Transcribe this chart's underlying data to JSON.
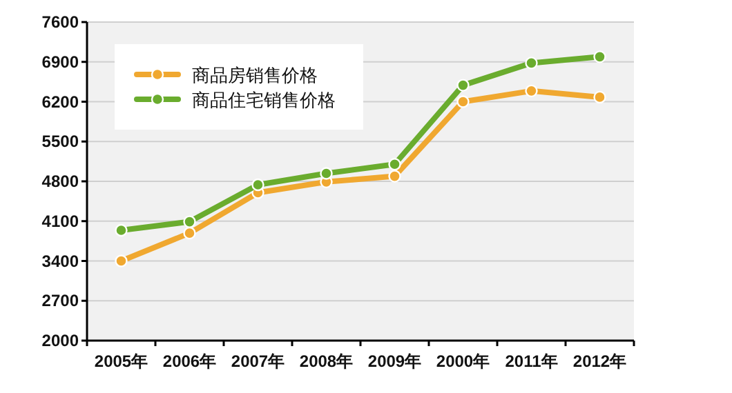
{
  "chart_data": {
    "type": "line",
    "categories": [
      "2005年",
      "2006年",
      "2007年",
      "2008年",
      "2009年",
      "2000年",
      "2011年",
      "2012年"
    ],
    "series": [
      {
        "name": "商品房销售价格",
        "color": "#f0a830",
        "values": [
          3400,
          3890,
          4600,
          4790,
          4890,
          6200,
          6390,
          6280
        ]
      },
      {
        "name": "商品住宅销售价格",
        "color": "#6aac2e",
        "values": [
          3940,
          4090,
          4740,
          4940,
          5100,
          6490,
          6880,
          6990
        ]
      }
    ],
    "ylim": [
      2000,
      7600
    ],
    "yticks": [
      2000,
      2700,
      3400,
      4100,
      4800,
      5500,
      6200,
      6900,
      7600
    ],
    "grid": "y",
    "legend": "top left",
    "marker": "circle",
    "line_style": "solid"
  }
}
